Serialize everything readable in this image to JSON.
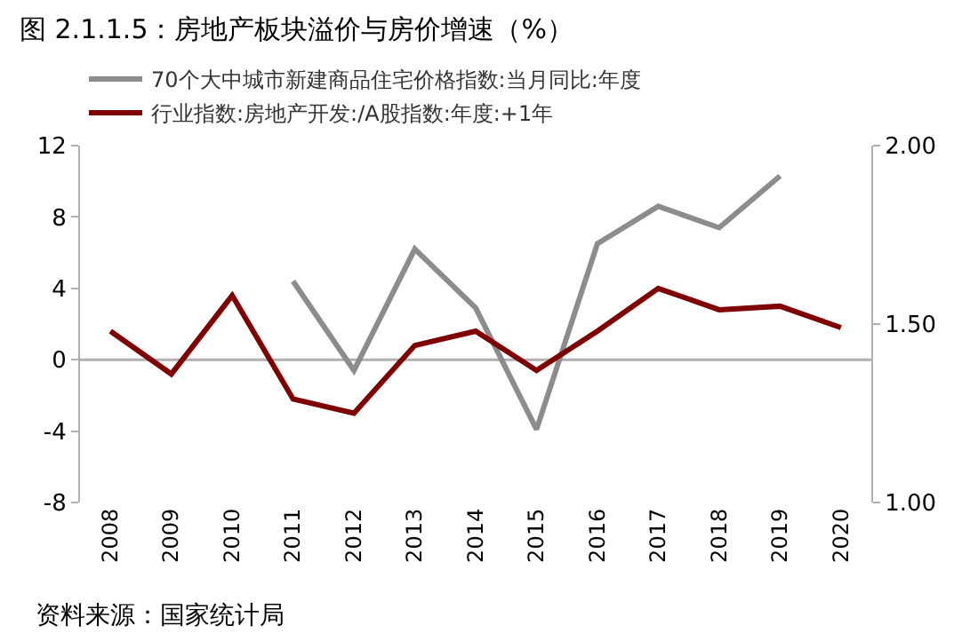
{
  "chart_data": {
    "type": "line",
    "title": "图 2.1.1.5：房地产板块溢价与房价增速（%）",
    "categories": [
      "2008",
      "2009",
      "2010",
      "2011",
      "2012",
      "2013",
      "2014",
      "2015",
      "2016",
      "2017",
      "2018",
      "2019",
      "2020"
    ],
    "series": [
      {
        "name": "70个大中城市新建商品住宅价格指数:当月同比:年度",
        "color": "#8c8c8c",
        "values": [
          null,
          null,
          null,
          4.4,
          -0.6,
          6.2,
          2.9,
          -3.9,
          6.5,
          8.6,
          7.4,
          10.3,
          null
        ]
      },
      {
        "name": "行业指数:房地产开发:/A股指数:年度:+1年",
        "color": "#7f0000",
        "axis": "y2",
        "values": [
          1.48,
          1.36,
          1.58,
          1.29,
          1.25,
          1.44,
          1.48,
          1.37,
          1.48,
          1.6,
          1.54,
          1.55,
          1.49
        ]
      }
    ],
    "ylim": [
      -8,
      12
    ],
    "yticks": [
      -8,
      -4,
      0,
      4,
      8,
      12
    ],
    "y2lim": [
      1,
      2
    ],
    "y2ticks": [
      {
        "value": 1,
        "label": "1.00"
      },
      {
        "value": 1.5,
        "label": "1.50"
      },
      {
        "value": 2,
        "label": "2.00"
      }
    ],
    "grid": false,
    "ref_lines": [
      {
        "axis": "y",
        "value": 0
      }
    ],
    "legend": "top",
    "marker": "none",
    "line_style": "solid",
    "annotations": [
      "资料来源：国家统计局"
    ]
  }
}
